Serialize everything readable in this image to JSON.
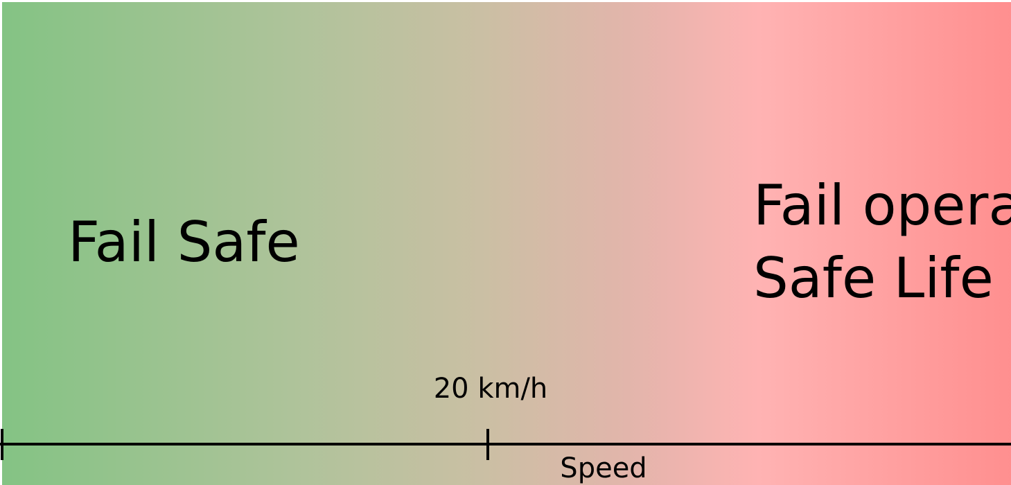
{
  "zones": [
    {
      "lines": [
        "Fail Safe"
      ]
    },
    {
      "lines": [
        "Fail operational",
        "Safe Life"
      ]
    }
  ],
  "axis": {
    "label": "Speed",
    "threshold": "20 km/h"
  }
}
